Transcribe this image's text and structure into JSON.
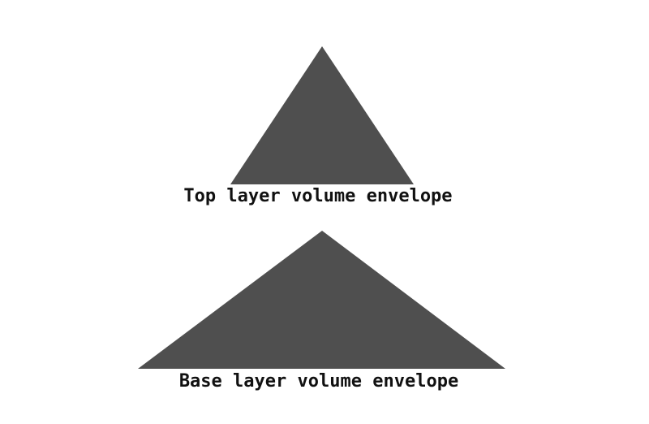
{
  "envelopes": [
    {
      "label": "Top layer volume envelope",
      "color": "#4f4f4f"
    },
    {
      "label": "Base layer volume envelope",
      "color": "#4f4f4f"
    }
  ],
  "background": "#ffffff"
}
